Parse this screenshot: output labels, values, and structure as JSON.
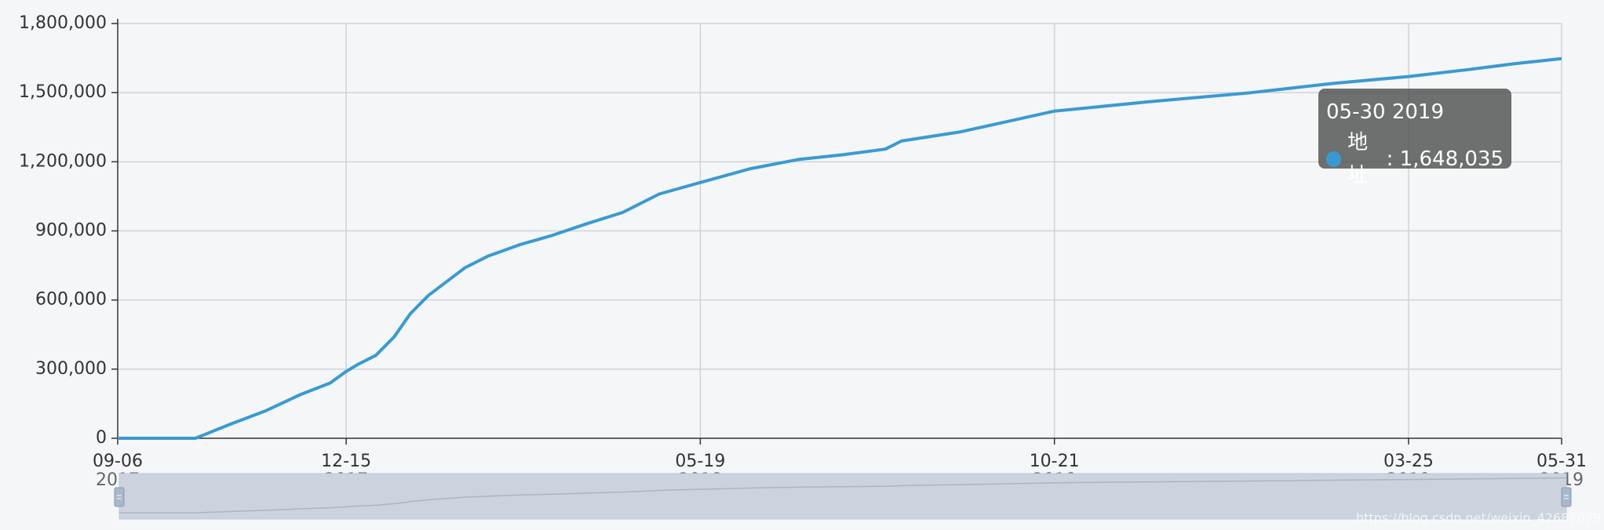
{
  "chart_data": {
    "type": "line",
    "title": "",
    "xlabel": "",
    "ylabel": "",
    "ylim": [
      0,
      1800000
    ],
    "y_ticks": [
      "1,800,000",
      "1,500,000",
      "1,200,000",
      "900,000",
      "600,000",
      "300,000",
      "0"
    ],
    "x_ticks": [
      {
        "md": "09-06",
        "yr": "2017"
      },
      {
        "md": "12-15",
        "yr": "2017"
      },
      {
        "md": "05-19",
        "yr": "2018"
      },
      {
        "md": "10-21",
        "yr": "2018"
      },
      {
        "md": "03-25",
        "yr": "2019"
      },
      {
        "md": "05-31",
        "yr": "2019"
      }
    ],
    "grid": true,
    "series": [
      {
        "name": "地址",
        "color": "#3a9ad0",
        "x": [
          "2017-09-06",
          "2017-10-10",
          "2017-10-25",
          "2017-11-10",
          "2017-11-25",
          "2017-12-08",
          "2017-12-15",
          "2017-12-20",
          "2017-12-28",
          "2018-01-05",
          "2018-01-12",
          "2018-01-20",
          "2018-01-28",
          "2018-02-05",
          "2018-02-15",
          "2018-03-01",
          "2018-03-15",
          "2018-03-30",
          "2018-04-15",
          "2018-05-01",
          "2018-05-19",
          "2018-06-10",
          "2018-07-01",
          "2018-07-20",
          "2018-08-08",
          "2018-08-15",
          "2018-09-10",
          "2018-10-21",
          "2018-12-01",
          "2019-01-15",
          "2019-02-20",
          "2019-03-25",
          "2019-04-20",
          "2019-05-10",
          "2019-05-31"
        ],
        "y": [
          0,
          0,
          60000,
          120000,
          190000,
          240000,
          290000,
          320000,
          360000,
          440000,
          540000,
          620000,
          680000,
          740000,
          790000,
          840000,
          880000,
          930000,
          980000,
          1060000,
          1110000,
          1170000,
          1210000,
          1230000,
          1255000,
          1290000,
          1330000,
          1420000,
          1460000,
          1500000,
          1540000,
          1570000,
          1600000,
          1625000,
          1648035
        ]
      }
    ],
    "tooltip": {
      "date": "05-30 2019",
      "label": "地址",
      "value": "1,648,035"
    },
    "watermark": "https://blog.csdn.net/weixin_42687079"
  }
}
